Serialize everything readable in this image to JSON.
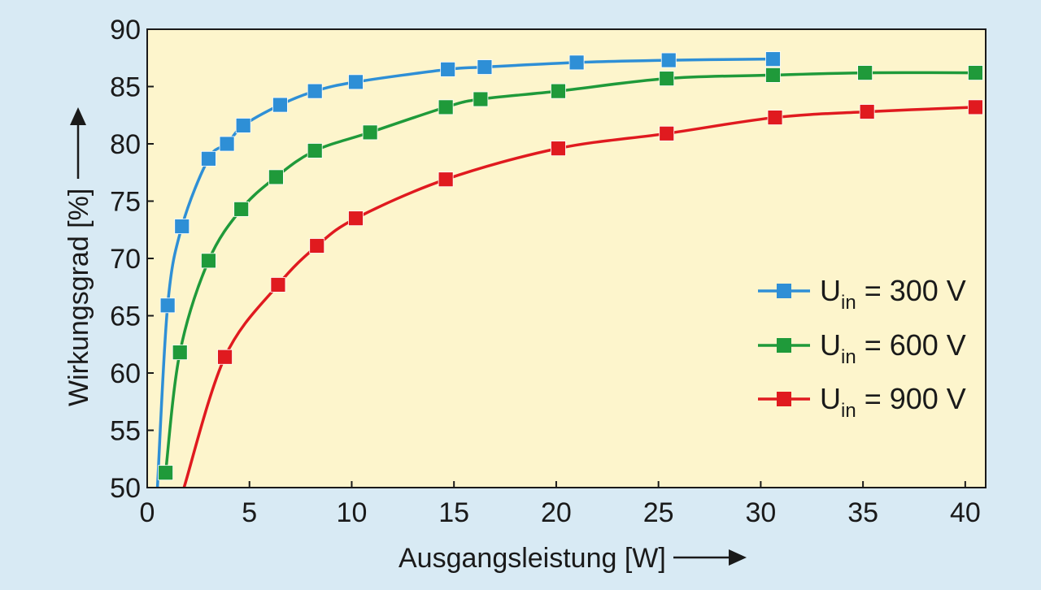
{
  "chart_data": {
    "type": "line",
    "xlabel": "Ausgangsleistung [W]",
    "ylabel": "Wirkungsgrad [%]",
    "xlim": [
      0,
      41
    ],
    "ylim": [
      50,
      90
    ],
    "x_ticks": [
      0,
      5,
      10,
      15,
      20,
      25,
      30,
      35,
      40
    ],
    "y_ticks": [
      50,
      55,
      60,
      65,
      70,
      75,
      80,
      85,
      90
    ],
    "x_tick_labels": [
      "0",
      "5",
      "10",
      "15",
      "20",
      "25",
      "30",
      "35",
      "40"
    ],
    "y_tick_labels": [
      "50",
      "55",
      "60",
      "65",
      "70",
      "75",
      "80",
      "85",
      "90"
    ],
    "grid": false,
    "legend_position": "right",
    "plot_background": "#fdf5cc",
    "series": [
      {
        "name": "U",
        "subscript": "in",
        "suffix": " = 300 V",
        "color": "#2e8fd6",
        "points": [
          [
            0.5,
            50.0
          ],
          [
            1.0,
            65.9
          ],
          [
            1.7,
            72.8
          ],
          [
            3.0,
            78.7
          ],
          [
            3.9,
            80.0
          ],
          [
            4.7,
            81.6
          ],
          [
            6.5,
            83.4
          ],
          [
            8.2,
            84.6
          ],
          [
            10.2,
            85.4
          ],
          [
            14.7,
            86.5
          ],
          [
            16.5,
            86.7
          ],
          [
            21.0,
            87.1
          ],
          [
            25.5,
            87.3
          ],
          [
            30.6,
            87.4
          ]
        ]
      },
      {
        "name": "U",
        "subscript": "in",
        "suffix": " = 600 V",
        "color": "#1f9a3a",
        "points": [
          [
            0.9,
            51.3
          ],
          [
            1.6,
            61.8
          ],
          [
            3.0,
            69.8
          ],
          [
            4.6,
            74.3
          ],
          [
            6.3,
            77.1
          ],
          [
            8.2,
            79.4
          ],
          [
            10.9,
            81.0
          ],
          [
            14.6,
            83.2
          ],
          [
            16.3,
            83.9
          ],
          [
            20.1,
            84.6
          ],
          [
            25.4,
            85.7
          ],
          [
            30.6,
            86.0
          ],
          [
            35.1,
            86.2
          ],
          [
            40.5,
            86.2
          ]
        ]
      },
      {
        "name": "U",
        "subscript": "in",
        "suffix": " = 900 V",
        "color": "#e01a1f",
        "points": [
          [
            1.8,
            50.0
          ],
          [
            3.8,
            61.4
          ],
          [
            6.4,
            67.7
          ],
          [
            8.3,
            71.1
          ],
          [
            10.2,
            73.5
          ],
          [
            14.6,
            76.9
          ],
          [
            20.1,
            79.6
          ],
          [
            25.4,
            80.9
          ],
          [
            30.7,
            82.3
          ],
          [
            35.2,
            82.8
          ],
          [
            40.5,
            83.2
          ]
        ]
      }
    ]
  }
}
